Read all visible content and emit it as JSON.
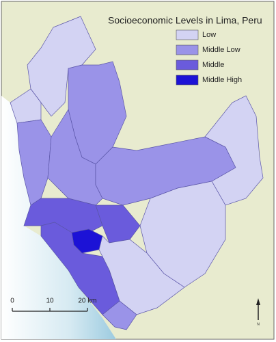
{
  "title": "Socioeconomic Levels in Lima, Peru",
  "legend": [
    {
      "label": "Low",
      "color": "#d3d3f3"
    },
    {
      "label": "Middle Low",
      "color": "#9a93e8"
    },
    {
      "label": "Middle",
      "color": "#6a5bdc"
    },
    {
      "label": "Middle High",
      "color": "#1c12d6"
    }
  ],
  "scale_bar": {
    "ticks": [
      0,
      10,
      {
        "value": 20,
        "label": "20 km"
      }
    ]
  },
  "north_label": "N"
}
